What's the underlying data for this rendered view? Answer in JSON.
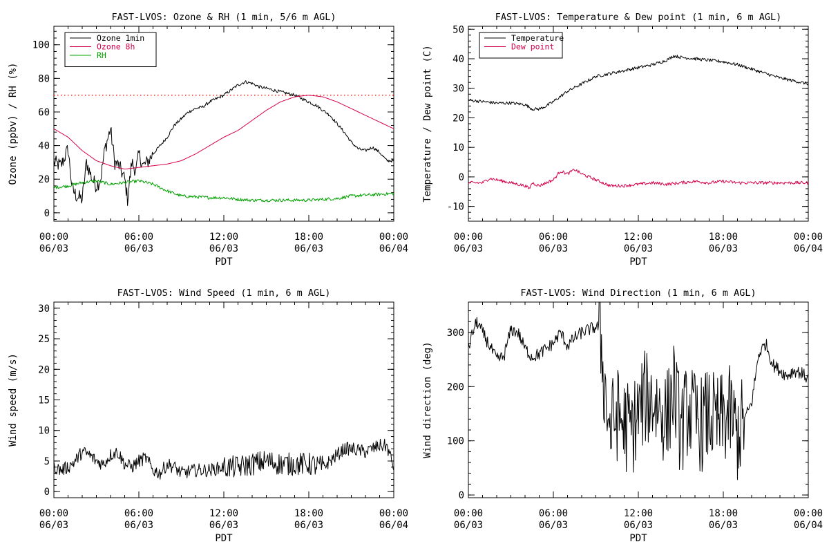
{
  "x_axis": {
    "xlabel": "PDT",
    "range_hours": [
      0,
      24
    ],
    "ticks": [
      {
        "hour": 0,
        "time": "00:00",
        "date": "06/03"
      },
      {
        "hour": 6,
        "time": "06:00",
        "date": "06/03"
      },
      {
        "hour": 12,
        "time": "12:00",
        "date": "06/03"
      },
      {
        "hour": 18,
        "time": "18:00",
        "date": "06/03"
      },
      {
        "hour": 24,
        "time": "00:00",
        "date": "06/04"
      }
    ]
  },
  "colors": {
    "ozone_1min": "#000000",
    "ozone_8h": "#d6004c",
    "rh": "#00a000",
    "temperature": "#000000",
    "dew_point": "#d6004c",
    "threshold": "#ff0000"
  },
  "chart_data": [
    {
      "id": "ozone",
      "type": "line",
      "title": "FAST-LVOS: Ozone & RH (1 min, 5/6 m AGL)",
      "xlabel": "PDT",
      "ylabel": "Ozone (ppbv) / RH (%)",
      "ylim": [
        -5,
        111
      ],
      "yticks": [
        0,
        20,
        40,
        60,
        80,
        100
      ],
      "legend_position": "top-left",
      "reference_line": {
        "y": 70,
        "style": "dotted",
        "color": "#ff0000"
      },
      "series": [
        {
          "name": "Ozone 1min",
          "color": "#000000",
          "noisy": true,
          "x": [
            0,
            0.5,
            1,
            1.3,
            1.6,
            2,
            2.3,
            2.7,
            3,
            3.3,
            3.6,
            4,
            4.3,
            4.6,
            5,
            5.2,
            5.5,
            5.8,
            6,
            6.3,
            6.6,
            7,
            7.5,
            8,
            8.5,
            9,
            9.5,
            10,
            10.5,
            11,
            11.5,
            12,
            12.5,
            13,
            13.5,
            14,
            14.5,
            15,
            15.5,
            16,
            16.5,
            17,
            17.5,
            18,
            18.5,
            19,
            19.5,
            20,
            20.5,
            21,
            21.5,
            22,
            22.5,
            23,
            23.5,
            24
          ],
          "y": [
            30,
            28,
            38,
            14,
            10,
            8,
            30,
            20,
            16,
            20,
            38,
            50,
            30,
            28,
            20,
            8,
            30,
            25,
            35,
            28,
            30,
            35,
            40,
            45,
            52,
            56,
            60,
            62,
            63,
            66,
            68,
            70,
            73,
            76,
            78,
            77,
            75,
            74,
            73,
            72,
            71,
            70,
            68,
            66,
            64,
            61,
            58,
            53,
            48,
            42,
            38,
            37,
            39,
            36,
            31,
            31
          ]
        },
        {
          "name": "Ozone 8h",
          "color": "#d6004c",
          "noisy": false,
          "x": [
            0,
            1,
            2,
            3,
            4,
            5,
            6,
            7,
            8,
            9,
            10,
            11,
            12,
            13,
            14,
            15,
            16,
            17,
            18,
            19,
            20,
            21,
            22,
            23,
            24
          ],
          "y": [
            50,
            45,
            37,
            31,
            28,
            26,
            27,
            28,
            29,
            31,
            35,
            40,
            45,
            49,
            55,
            61,
            66,
            69,
            70,
            69,
            66,
            62,
            58,
            54,
            50
          ]
        },
        {
          "name": "RH",
          "color": "#00a000",
          "noisy": true,
          "x": [
            0,
            1,
            2,
            3,
            4,
            5,
            6,
            7,
            8,
            9,
            10,
            11,
            12,
            13,
            14,
            15,
            16,
            17,
            18,
            19,
            20,
            21,
            22,
            23,
            24
          ],
          "y": [
            15,
            16,
            18,
            19,
            17,
            18,
            19,
            17,
            13,
            10,
            9.5,
            9,
            9,
            8,
            7.5,
            7.5,
            7.5,
            7.5,
            7.5,
            8,
            8.5,
            10,
            10.5,
            11,
            11.5
          ]
        }
      ]
    },
    {
      "id": "temperature",
      "type": "line",
      "title": "FAST-LVOS: Temperature & Dew point (1 min, 6 m AGL)",
      "xlabel": "PDT",
      "ylabel": "Temperature / Dew point (C)",
      "ylim": [
        -15,
        51
      ],
      "yticks": [
        -10,
        0,
        10,
        20,
        30,
        40,
        50
      ],
      "legend_position": "top-left",
      "series": [
        {
          "name": "Temperature",
          "color": "#000000",
          "noisy": true,
          "x": [
            0,
            1,
            2,
            3,
            4,
            4.5,
            5,
            5.5,
            6,
            7,
            8,
            9,
            10,
            11,
            12,
            13,
            14,
            14.5,
            15,
            16,
            17,
            18,
            19,
            20,
            21,
            22,
            23,
            24
          ],
          "y": [
            26,
            25.5,
            25,
            25,
            24.5,
            23,
            23,
            24,
            25.5,
            29,
            31.5,
            34,
            35,
            36,
            37,
            38,
            39.5,
            41,
            40.5,
            40,
            39.5,
            39,
            38,
            36.5,
            35,
            33.5,
            32.5,
            31.5
          ]
        },
        {
          "name": "Dew point",
          "color": "#d6004c",
          "noisy": true,
          "x": [
            0,
            1,
            1.5,
            2,
            3,
            4,
            4.3,
            4.5,
            5,
            5.5,
            6,
            6.5,
            7,
            7.5,
            8,
            9,
            10,
            11,
            12,
            13,
            14,
            15,
            16,
            17,
            18,
            19,
            20,
            21,
            22,
            23,
            24
          ],
          "y": [
            -2,
            -2,
            -0.5,
            -1,
            -2,
            -3,
            -4,
            -2,
            -3,
            -2,
            -1,
            2,
            1,
            2.5,
            1,
            -1,
            -3,
            -3,
            -2.5,
            -2,
            -2.5,
            -2,
            -1.5,
            -2,
            -1.5,
            -2,
            -2,
            -2,
            -2,
            -2,
            -2
          ]
        }
      ]
    },
    {
      "id": "windspeed",
      "type": "line",
      "title": "FAST-LVOS: Wind Speed (1 min, 6 m AGL)",
      "xlabel": "PDT",
      "ylabel": "Wind speed (m/s)",
      "ylim": [
        -1,
        31
      ],
      "yticks": [
        0,
        5,
        10,
        15,
        20,
        25,
        30
      ],
      "series": [
        {
          "color": "#000000",
          "noisy": true,
          "x": [
            0,
            0.5,
            1,
            1.5,
            2,
            2.5,
            3,
            3.5,
            4,
            4.5,
            5,
            5.5,
            6,
            6.5,
            7,
            7.5,
            8,
            8.5,
            9,
            10,
            11,
            12,
            13,
            14,
            15,
            16,
            17,
            18,
            19,
            20,
            20.5,
            21,
            22,
            23,
            23.5,
            24
          ],
          "y": [
            4,
            3.5,
            4,
            5,
            6.5,
            6,
            5,
            4.5,
            6,
            6.5,
            4.5,
            4,
            5,
            5.5,
            3.5,
            3,
            4.5,
            4,
            3,
            3.5,
            3.5,
            4,
            4,
            4.5,
            5,
            4.5,
            4.5,
            4.5,
            4,
            6,
            7,
            7,
            6.5,
            7.5,
            7.5,
            4
          ]
        }
      ]
    },
    {
      "id": "winddir",
      "type": "line",
      "title": "FAST-LVOS: Wind Direction (1 min, 6 m AGL)",
      "xlabel": "PDT",
      "ylabel": "Wind direction (deg)",
      "ylim": [
        -5,
        356
      ],
      "yticks": [
        0,
        100,
        200,
        300
      ],
      "series": [
        {
          "color": "#000000",
          "noisy": true,
          "x": [
            0,
            0.3,
            0.6,
            1,
            1.5,
            2,
            2.5,
            3,
            3.5,
            4,
            4.5,
            5,
            5.5,
            6,
            6.5,
            7,
            7.5,
            8,
            8.5,
            9,
            9.3,
            9.6,
            10,
            10.5,
            11,
            11.5,
            12,
            12.5,
            13,
            13.5,
            14,
            14.5,
            15,
            15.5,
            16,
            16.5,
            17,
            17.5,
            18,
            18.5,
            19,
            19.5,
            20,
            20.5,
            21,
            21.5,
            22,
            22.5,
            23,
            23.5,
            24
          ],
          "y": [
            270,
            300,
            320,
            300,
            275,
            250,
            255,
            305,
            300,
            270,
            255,
            260,
            270,
            280,
            300,
            275,
            290,
            300,
            305,
            310,
            310,
            200,
            120,
            150,
            130,
            120,
            150,
            180,
            175,
            160,
            140,
            200,
            120,
            160,
            140,
            130,
            150,
            130,
            140,
            150,
            110,
            140,
            170,
            260,
            280,
            240,
            230,
            220,
            230,
            225,
            215
          ]
        }
      ]
    }
  ]
}
